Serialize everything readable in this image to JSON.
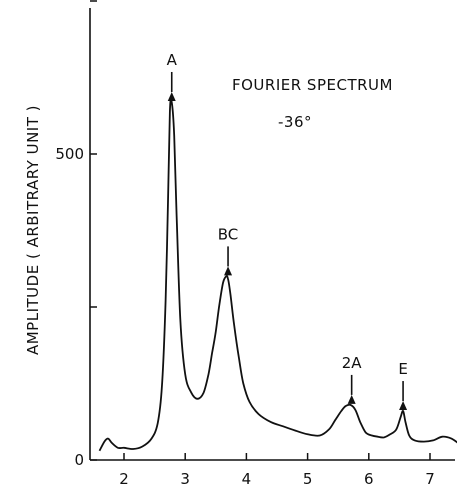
{
  "chart_data": {
    "type": "line",
    "title": "FOURIER SPECTRUM",
    "subtitle": "-36°",
    "xlabel": "",
    "ylabel": "AMPLITUDE ( ARBITRARY UNIT )",
    "xlim": [
      1.5,
      7.6
    ],
    "ylim": [
      0,
      750
    ],
    "grid": false,
    "x_ticks": [
      {
        "value": 2,
        "label": "2"
      },
      {
        "value": 3,
        "label": "3"
      },
      {
        "value": 4,
        "label": "4"
      },
      {
        "value": 5,
        "label": "5"
      },
      {
        "value": 6,
        "label": "6"
      },
      {
        "value": 7,
        "label": "7"
      }
    ],
    "y_ticks": [
      {
        "value": 0,
        "label": "0"
      },
      {
        "value": 250,
        "label": ""
      },
      {
        "value": 500,
        "label": "500"
      },
      {
        "value": 750,
        "label": ""
      }
    ],
    "series": [
      {
        "x": [
          1.6,
          1.68,
          1.74,
          1.8,
          1.9,
          2.0,
          2.15,
          2.3,
          2.45,
          2.55,
          2.62,
          2.68,
          2.72,
          2.75,
          2.78,
          2.82,
          2.86,
          2.92,
          3.0,
          3.1,
          3.2,
          3.3,
          3.38,
          3.44,
          3.5,
          3.56,
          3.62,
          3.67,
          3.7,
          3.74,
          3.8,
          3.88,
          3.95,
          4.05,
          4.2,
          4.4,
          4.6,
          4.8,
          5.0,
          5.2,
          5.35,
          5.45,
          5.55,
          5.62,
          5.7,
          5.78,
          5.86,
          5.95,
          6.05,
          6.15,
          6.25,
          6.35,
          6.45,
          6.52,
          6.56,
          6.6,
          6.66,
          6.75,
          6.9,
          7.05,
          7.2,
          7.35,
          7.5,
          7.6
        ],
        "y": [
          15,
          30,
          35,
          28,
          20,
          20,
          18,
          22,
          35,
          60,
          120,
          260,
          430,
          570,
          585,
          530,
          400,
          230,
          140,
          110,
          100,
          110,
          140,
          175,
          210,
          255,
          290,
          300,
          296,
          270,
          220,
          165,
          125,
          95,
          75,
          62,
          55,
          48,
          42,
          40,
          50,
          65,
          80,
          88,
          90,
          82,
          62,
          45,
          40,
          38,
          37,
          42,
          50,
          70,
          80,
          62,
          40,
          32,
          30,
          32,
          38,
          35,
          25,
          22
        ]
      }
    ],
    "annotations": [
      {
        "label": "A",
        "x": 2.78,
        "y": 585
      },
      {
        "label": "BC",
        "x": 3.7,
        "y": 300
      },
      {
        "label": "2A",
        "x": 5.72,
        "y": 90
      },
      {
        "label": "E",
        "x": 6.56,
        "y": 80
      }
    ]
  }
}
